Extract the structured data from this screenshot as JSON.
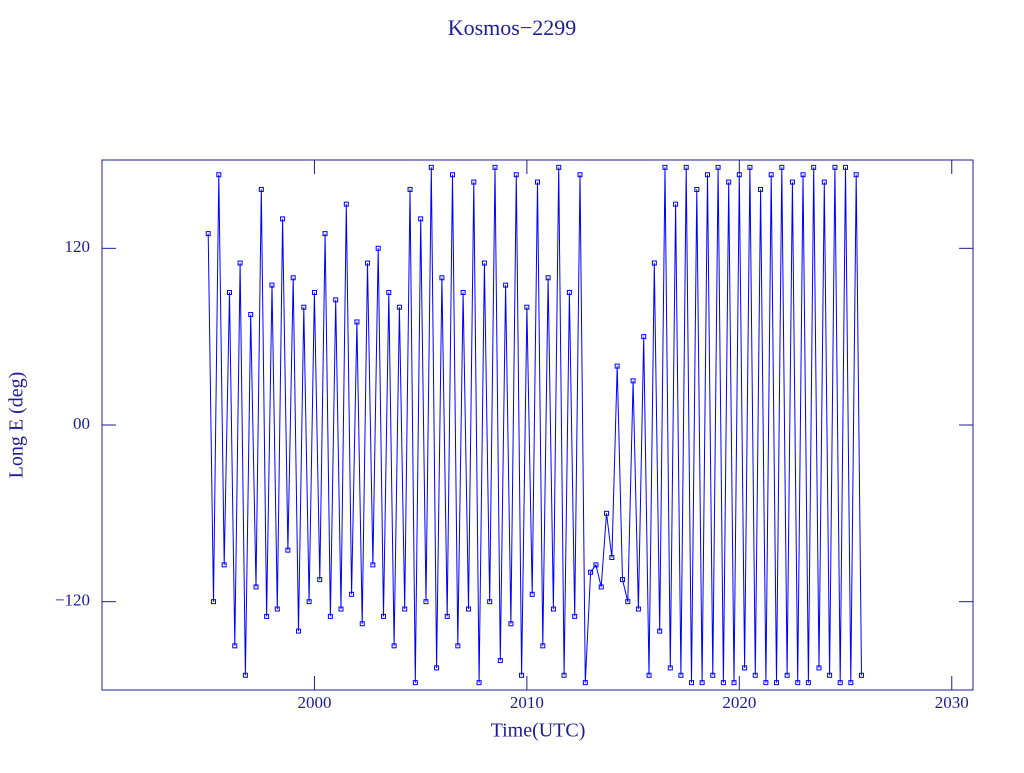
{
  "chart_data": {
    "type": "line",
    "title": "Kosmos−2299",
    "xlabel": "Time(UTC)",
    "ylabel": "Long E (deg)",
    "color": "#0000ff",
    "marker": "square",
    "xlim": [
      1990,
      2031
    ],
    "xticks": [
      2000,
      2010,
      2020,
      2030
    ],
    "ylim": [
      -180,
      180
    ],
    "yticks": [
      {
        "value": 120,
        "label": "120"
      },
      {
        "value": 0,
        "label": "00"
      },
      {
        "value": -120,
        "label": "−120"
      }
    ],
    "x": [
      1995,
      1995.25,
      1995.5,
      1995.75,
      1996,
      1996.25,
      1996.5,
      1996.75,
      1997,
      1997.25,
      1997.5,
      1997.75,
      1998,
      1998.25,
      1998.5,
      1998.75,
      1999,
      1999.25,
      1999.5,
      1999.75,
      2000,
      2000.25,
      2000.5,
      2000.75,
      2001,
      2001.25,
      2001.5,
      2001.75,
      2002,
      2002.25,
      2002.5,
      2002.75,
      2003,
      2003.25,
      2003.5,
      2003.75,
      2004,
      2004.25,
      2004.5,
      2004.75,
      2005,
      2005.25,
      2005.5,
      2005.75,
      2006,
      2006.25,
      2006.5,
      2006.75,
      2007,
      2007.25,
      2007.5,
      2007.75,
      2008,
      2008.25,
      2008.5,
      2008.75,
      2009,
      2009.25,
      2009.5,
      2009.75,
      2010,
      2010.25,
      2010.5,
      2010.75,
      2011,
      2011.25,
      2011.5,
      2011.75,
      2012,
      2012.25,
      2012.5,
      2012.75,
      2013,
      2013.25,
      2013.5,
      2013.75,
      2014,
      2014.25,
      2014.5,
      2014.75,
      2015,
      2015.25,
      2015.5,
      2015.75,
      2016,
      2016.25,
      2016.5,
      2016.75,
      2017,
      2017.25,
      2017.5,
      2017.75,
      2018,
      2018.25,
      2018.5,
      2018.75,
      2019,
      2019.25,
      2019.5,
      2019.75,
      2020,
      2020.25,
      2020.5,
      2020.75,
      2021,
      2021.25,
      2021.5,
      2021.75,
      2022,
      2022.25,
      2022.5,
      2022.75,
      2023,
      2023.25,
      2023.5,
      2023.75,
      2024,
      2024.25,
      2024.5,
      2024.75,
      2025,
      2025.25,
      2025.5,
      2025.75
    ],
    "values": [
      130,
      -120,
      170,
      -95,
      90,
      -150,
      110,
      -170,
      75,
      -110,
      160,
      -130,
      95,
      -125,
      140,
      -85,
      100,
      -140,
      80,
      -120,
      90,
      -105,
      130,
      -130,
      85,
      -125,
      150,
      -115,
      70,
      -135,
      110,
      -95,
      120,
      -130,
      90,
      -150,
      80,
      -125,
      160,
      -175,
      140,
      -120,
      175,
      -165,
      100,
      -130,
      170,
      -150,
      90,
      -125,
      165,
      -175,
      110,
      -120,
      175,
      -160,
      95,
      -135,
      170,
      -170,
      80,
      -115,
      165,
      -150,
      100,
      -125,
      175,
      -170,
      90,
      -130,
      170,
      -175,
      -100,
      -95,
      -110,
      -60,
      -90,
      40,
      -105,
      -120,
      30,
      -125,
      60,
      -170,
      110,
      -140,
      175,
      -165,
      150,
      -170,
      175,
      -175,
      160,
      -175,
      170,
      -170,
      175,
      -175,
      165,
      -175,
      170,
      -165,
      175,
      -170,
      160,
      -175,
      170,
      -175,
      175,
      -170,
      165,
      -175,
      170,
      -175,
      175,
      -165,
      165,
      -170,
      175,
      -175,
      175,
      -175,
      170,
      -170
    ]
  }
}
